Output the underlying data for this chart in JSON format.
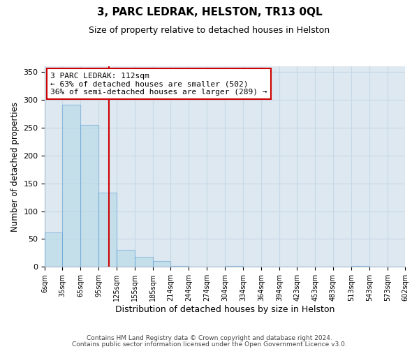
{
  "title": "3, PARC LEDRAK, HELSTON, TR13 0QL",
  "subtitle": "Size of property relative to detached houses in Helston",
  "xlabel": "Distribution of detached houses by size in Helston",
  "ylabel": "Number of detached properties",
  "bin_edges": [
    6,
    35,
    65,
    95,
    125,
    155,
    185,
    214,
    244,
    274,
    304,
    334,
    364,
    394,
    423,
    453,
    483,
    513,
    543,
    573,
    602
  ],
  "bar_heights": [
    62,
    291,
    255,
    133,
    30,
    18,
    11,
    2,
    0,
    0,
    2,
    0,
    0,
    0,
    0,
    0,
    0,
    2,
    0,
    0
  ],
  "bar_color": "#add8e6",
  "bar_edge_color": "#5b9bd5",
  "bar_alpha": 0.5,
  "property_size": 112,
  "property_line_color": "#cc0000",
  "annotation_text": "3 PARC LEDRAK: 112sqm\n← 63% of detached houses are smaller (502)\n36% of semi-detached houses are larger (289) →",
  "annotation_box_color": "#ffffff",
  "annotation_box_edge_color": "#cc0000",
  "ylim": [
    0,
    360
  ],
  "yticks": [
    0,
    50,
    100,
    150,
    200,
    250,
    300,
    350
  ],
  "tick_labels": [
    "6sqm",
    "35sqm",
    "65sqm",
    "95sqm",
    "125sqm",
    "155sqm",
    "185sqm",
    "214sqm",
    "244sqm",
    "274sqm",
    "304sqm",
    "334sqm",
    "364sqm",
    "394sqm",
    "423sqm",
    "453sqm",
    "483sqm",
    "513sqm",
    "543sqm",
    "573sqm",
    "602sqm"
  ],
  "footer_line1": "Contains HM Land Registry data © Crown copyright and database right 2024.",
  "footer_line2": "Contains public sector information licensed under the Open Government Licence v3.0.",
  "background_color": "#ffffff",
  "grid_color": "#c8d8e8",
  "figsize": [
    6.0,
    5.0
  ],
  "dpi": 100
}
